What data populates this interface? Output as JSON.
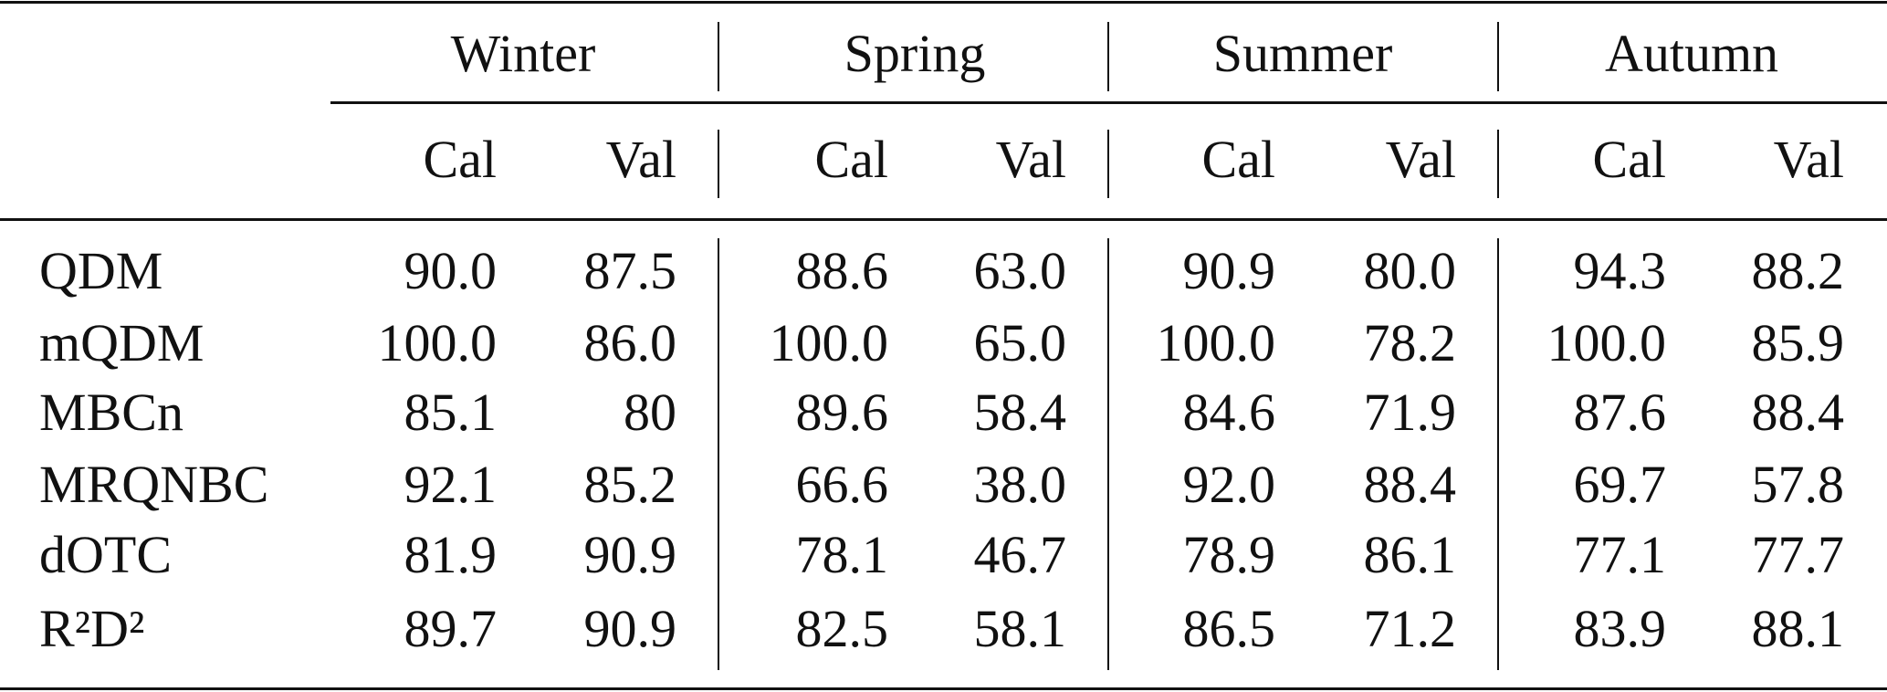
{
  "table": {
    "seasons": [
      "Winter",
      "Spring",
      "Summer",
      "Autumn"
    ],
    "subheaders": [
      "Cal",
      "Val",
      "Cal",
      "Val",
      "Cal",
      "Val",
      "Cal",
      "Val"
    ],
    "rows": [
      [
        "QDM",
        "90.0",
        "87.5",
        "88.6",
        "63.0",
        "90.9",
        "80.0",
        "94.3",
        "88.2"
      ],
      [
        "mQDM",
        "100.0",
        "86.0",
        "100.0",
        "65.0",
        "100.0",
        "78.2",
        "100.0",
        "85.9"
      ],
      [
        "MBCn",
        "85.1",
        "80",
        "89.6",
        "58.4",
        "84.6",
        "71.9",
        "87.6",
        "88.4"
      ],
      [
        "MRQNBC",
        "92.1",
        "85.2",
        "66.6",
        "38.0",
        "92.0",
        "88.4",
        "69.7",
        "57.8"
      ],
      [
        "dOTC",
        "81.9",
        "90.9",
        "78.1",
        "46.7",
        "78.9",
        "86.1",
        "77.1",
        "77.7"
      ],
      [
        "R²D²",
        "89.7",
        "90.9",
        "82.5",
        "58.1",
        "86.5",
        "71.2",
        "83.9",
        "88.1"
      ]
    ]
  }
}
